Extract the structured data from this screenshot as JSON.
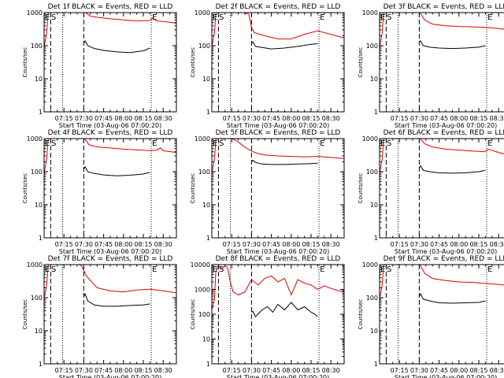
{
  "colors": {
    "events": "#000000",
    "lld": "#dd0000",
    "axes": "#000000",
    "background": "#ffffff"
  },
  "shared": {
    "xlabel": "Start Time (03-Aug-06 07:00:20)",
    "ylabel": "Counts/sec",
    "x_ticks": [
      "07:15",
      "07:30",
      "07:45",
      "08:00",
      "08:15",
      "08:30"
    ],
    "x_tick_minutes": [
      15,
      30,
      45,
      60,
      75,
      90
    ],
    "x_range_minutes": [
      0,
      100
    ],
    "marker_E": "E",
    "marker_S": "S",
    "dashed_lines_minutes": [
      5,
      30
    ],
    "dotted_lines_minutes": [
      14,
      81
    ]
  },
  "chart_data": [
    {
      "type": "line",
      "title": "Det 1f BLACK = Events, RED = LLD",
      "yscale": "log",
      "ylim": [
        1,
        1000
      ],
      "y_ticks": [
        "1",
        "10",
        "100",
        "1000"
      ],
      "y_tick_values": [
        1,
        10,
        100,
        1000
      ],
      "series": [
        {
          "name": "LLD",
          "color": "#dd0000",
          "x": [
            0,
            2,
            3,
            4,
            10,
            20,
            30,
            35,
            40,
            50,
            60,
            70,
            80,
            82,
            85,
            90,
            100
          ],
          "y": [
            90,
            250,
            900,
            1100,
            1200,
            1200,
            1100,
            780,
            720,
            650,
            600,
            560,
            580,
            680,
            560,
            540,
            480
          ]
        },
        {
          "name": "Events",
          "color": "#000000",
          "x": [
            30,
            31,
            33,
            38,
            45,
            55,
            65,
            75,
            80
          ],
          "y": [
            120,
            140,
            100,
            82,
            72,
            65,
            62,
            70,
            85
          ]
        }
      ]
    },
    {
      "type": "line",
      "title": "Det 2f BLACK = Events, RED = LLD",
      "yscale": "log",
      "ylim": [
        1,
        1000
      ],
      "y_ticks": [
        "1",
        "10",
        "100",
        "1000"
      ],
      "y_tick_values": [
        1,
        10,
        100,
        1000
      ],
      "series": [
        {
          "name": "LLD",
          "color": "#dd0000",
          "x": [
            0,
            2,
            3,
            4,
            10,
            20,
            28,
            30,
            32,
            40,
            50,
            60,
            70,
            80,
            90,
            100
          ],
          "y": [
            90,
            250,
            900,
            1100,
            1200,
            1100,
            900,
            350,
            250,
            200,
            160,
            160,
            220,
            280,
            220,
            170
          ]
        },
        {
          "name": "Events",
          "color": "#000000",
          "x": [
            30,
            31,
            33,
            38,
            45,
            55,
            65,
            75,
            80
          ],
          "y": [
            120,
            130,
            95,
            88,
            80,
            85,
            95,
            110,
            115
          ]
        }
      ]
    },
    {
      "type": "line",
      "title": "Det 3f BLACK = Events, RED = LLD",
      "yscale": "log",
      "ylim": [
        1,
        1000
      ],
      "y_ticks": [
        "1",
        "10",
        "100",
        "1000"
      ],
      "y_tick_values": [
        1,
        10,
        100,
        1000
      ],
      "series": [
        {
          "name": "LLD",
          "color": "#dd0000",
          "x": [
            0,
            2,
            3,
            4,
            10,
            20,
            30,
            34,
            40,
            50,
            60,
            70,
            80,
            90,
            100
          ],
          "y": [
            90,
            250,
            900,
            1100,
            1200,
            1200,
            1100,
            600,
            450,
            400,
            380,
            370,
            360,
            330,
            290
          ]
        },
        {
          "name": "Events",
          "color": "#000000",
          "x": [
            30,
            31,
            33,
            38,
            45,
            55,
            65,
            75,
            80
          ],
          "y": [
            130,
            140,
            100,
            90,
            85,
            82,
            85,
            90,
            100
          ]
        }
      ]
    },
    {
      "type": "line",
      "title": "Det 4f BLACK = Events, RED = LLD",
      "yscale": "log",
      "ylim": [
        1,
        1000
      ],
      "y_ticks": [
        "1",
        "10",
        "100",
        "1000"
      ],
      "y_tick_values": [
        1,
        10,
        100,
        1000
      ],
      "series": [
        {
          "name": "LLD",
          "color": "#dd0000",
          "x": [
            0,
            2,
            3,
            4,
            10,
            20,
            30,
            34,
            40,
            50,
            60,
            70,
            80,
            85,
            88,
            90,
            100
          ],
          "y": [
            90,
            250,
            900,
            1100,
            1200,
            1200,
            1100,
            650,
            560,
            520,
            480,
            460,
            430,
            450,
            520,
            430,
            380
          ]
        },
        {
          "name": "Events",
          "color": "#000000",
          "x": [
            30,
            31,
            33,
            38,
            45,
            55,
            65,
            75,
            80
          ],
          "y": [
            120,
            140,
            100,
            88,
            80,
            75,
            78,
            85,
            95
          ]
        }
      ]
    },
    {
      "type": "line",
      "title": "Det 5f BLACK = Events, RED = LLD",
      "yscale": "log",
      "ylim": [
        1,
        1000
      ],
      "y_ticks": [
        "1",
        "10",
        "100",
        "1000"
      ],
      "y_tick_values": [
        1,
        10,
        100,
        1000
      ],
      "series": [
        {
          "name": "LLD",
          "color": "#dd0000",
          "x": [
            0,
            2,
            3,
            4,
            8,
            12,
            18,
            25,
            30,
            35,
            40,
            50,
            60,
            70,
            80,
            90,
            100
          ],
          "y": [
            90,
            250,
            900,
            1100,
            950,
            1100,
            900,
            550,
            420,
            350,
            320,
            300,
            290,
            280,
            290,
            270,
            250
          ]
        },
        {
          "name": "Events",
          "color": "#000000",
          "x": [
            30,
            31,
            33,
            38,
            45,
            55,
            65,
            75,
            80
          ],
          "y": [
            200,
            220,
            190,
            170,
            165,
            165,
            170,
            175,
            180
          ]
        }
      ]
    },
    {
      "type": "line",
      "title": "Det 6f BLACK = Events, RED = LLD",
      "yscale": "log",
      "ylim": [
        1,
        1000
      ],
      "y_ticks": [
        "1",
        "10",
        "100",
        "1000"
      ],
      "y_tick_values": [
        1,
        10,
        100,
        1000
      ],
      "series": [
        {
          "name": "LLD",
          "color": "#dd0000",
          "x": [
            0,
            2,
            3,
            4,
            10,
            20,
            30,
            34,
            40,
            50,
            60,
            70,
            80,
            82,
            90,
            100
          ],
          "y": [
            90,
            250,
            900,
            1100,
            1200,
            1200,
            1100,
            700,
            560,
            480,
            450,
            420,
            400,
            480,
            380,
            300
          ]
        },
        {
          "name": "Events",
          "color": "#000000",
          "x": [
            30,
            31,
            33,
            38,
            45,
            55,
            65,
            75,
            80
          ],
          "y": [
            130,
            150,
            110,
            100,
            92,
            90,
            92,
            100,
            110
          ]
        }
      ]
    },
    {
      "type": "line",
      "title": "Det 7f BLACK = Events, RED = LLD",
      "yscale": "log",
      "ylim": [
        1,
        1000
      ],
      "y_ticks": [
        "1",
        "10",
        "100",
        "1000"
      ],
      "y_tick_values": [
        1,
        10,
        100,
        1000
      ],
      "series": [
        {
          "name": "LLD",
          "color": "#dd0000",
          "x": [
            0,
            2,
            3,
            4,
            10,
            20,
            28,
            32,
            40,
            50,
            60,
            70,
            80,
            90,
            100
          ],
          "y": [
            90,
            250,
            900,
            1100,
            1200,
            1200,
            950,
            450,
            200,
            160,
            150,
            170,
            180,
            160,
            140
          ]
        },
        {
          "name": "Events",
          "color": "#000000",
          "x": [
            30,
            31,
            33,
            38,
            45,
            55,
            65,
            75,
            80
          ],
          "y": [
            110,
            130,
            80,
            60,
            55,
            55,
            58,
            60,
            65
          ]
        }
      ]
    },
    {
      "type": "line",
      "title": "Det 8f BLACK = Events, RED = LLD",
      "yscale": "log",
      "ylim": [
        1,
        10000
      ],
      "y_ticks": [
        "1",
        "10",
        "100",
        "1000",
        "10000"
      ],
      "y_tick_values": [
        1,
        10,
        100,
        1000,
        10000
      ],
      "series": [
        {
          "name": "LLD",
          "color": "#dd0000",
          "x": [
            0,
            2,
            3,
            5,
            8,
            10,
            12,
            14,
            16,
            20,
            25,
            30,
            35,
            40,
            45,
            50,
            55,
            60,
            65,
            70,
            75,
            80,
            85,
            90,
            95,
            100
          ],
          "y": [
            150,
            400,
            5000,
            9000,
            7000,
            9000,
            7000,
            2000,
            800,
            600,
            800,
            2500,
            1500,
            2800,
            3500,
            2000,
            2800,
            600,
            2500,
            1800,
            1500,
            1000,
            1400,
            1100,
            900,
            800
          ]
        },
        {
          "name": "Events",
          "color": "#000000",
          "x": [
            30,
            31,
            33,
            38,
            42,
            46,
            50,
            55,
            60,
            65,
            70,
            75,
            78,
            80
          ],
          "y": [
            120,
            130,
            80,
            150,
            200,
            120,
            250,
            150,
            300,
            150,
            200,
            120,
            100,
            80
          ]
        }
      ]
    },
    {
      "type": "line",
      "title": "Det 9f BLACK = Events, RED = LLD",
      "yscale": "log",
      "ylim": [
        1,
        1000
      ],
      "y_ticks": [
        "1",
        "10",
        "100",
        "1000"
      ],
      "y_tick_values": [
        1,
        10,
        100,
        1000
      ],
      "series": [
        {
          "name": "LLD",
          "color": "#dd0000",
          "x": [
            0,
            2,
            3,
            4,
            10,
            20,
            30,
            34,
            40,
            50,
            60,
            70,
            80,
            90,
            100
          ],
          "y": [
            90,
            250,
            900,
            1100,
            1200,
            1200,
            1100,
            550,
            380,
            330,
            300,
            290,
            270,
            250,
            230
          ]
        },
        {
          "name": "Events",
          "color": "#000000",
          "x": [
            30,
            31,
            33,
            38,
            45,
            55,
            65,
            75,
            80
          ],
          "y": [
            110,
            130,
            90,
            80,
            70,
            68,
            70,
            72,
            80
          ]
        }
      ]
    }
  ]
}
